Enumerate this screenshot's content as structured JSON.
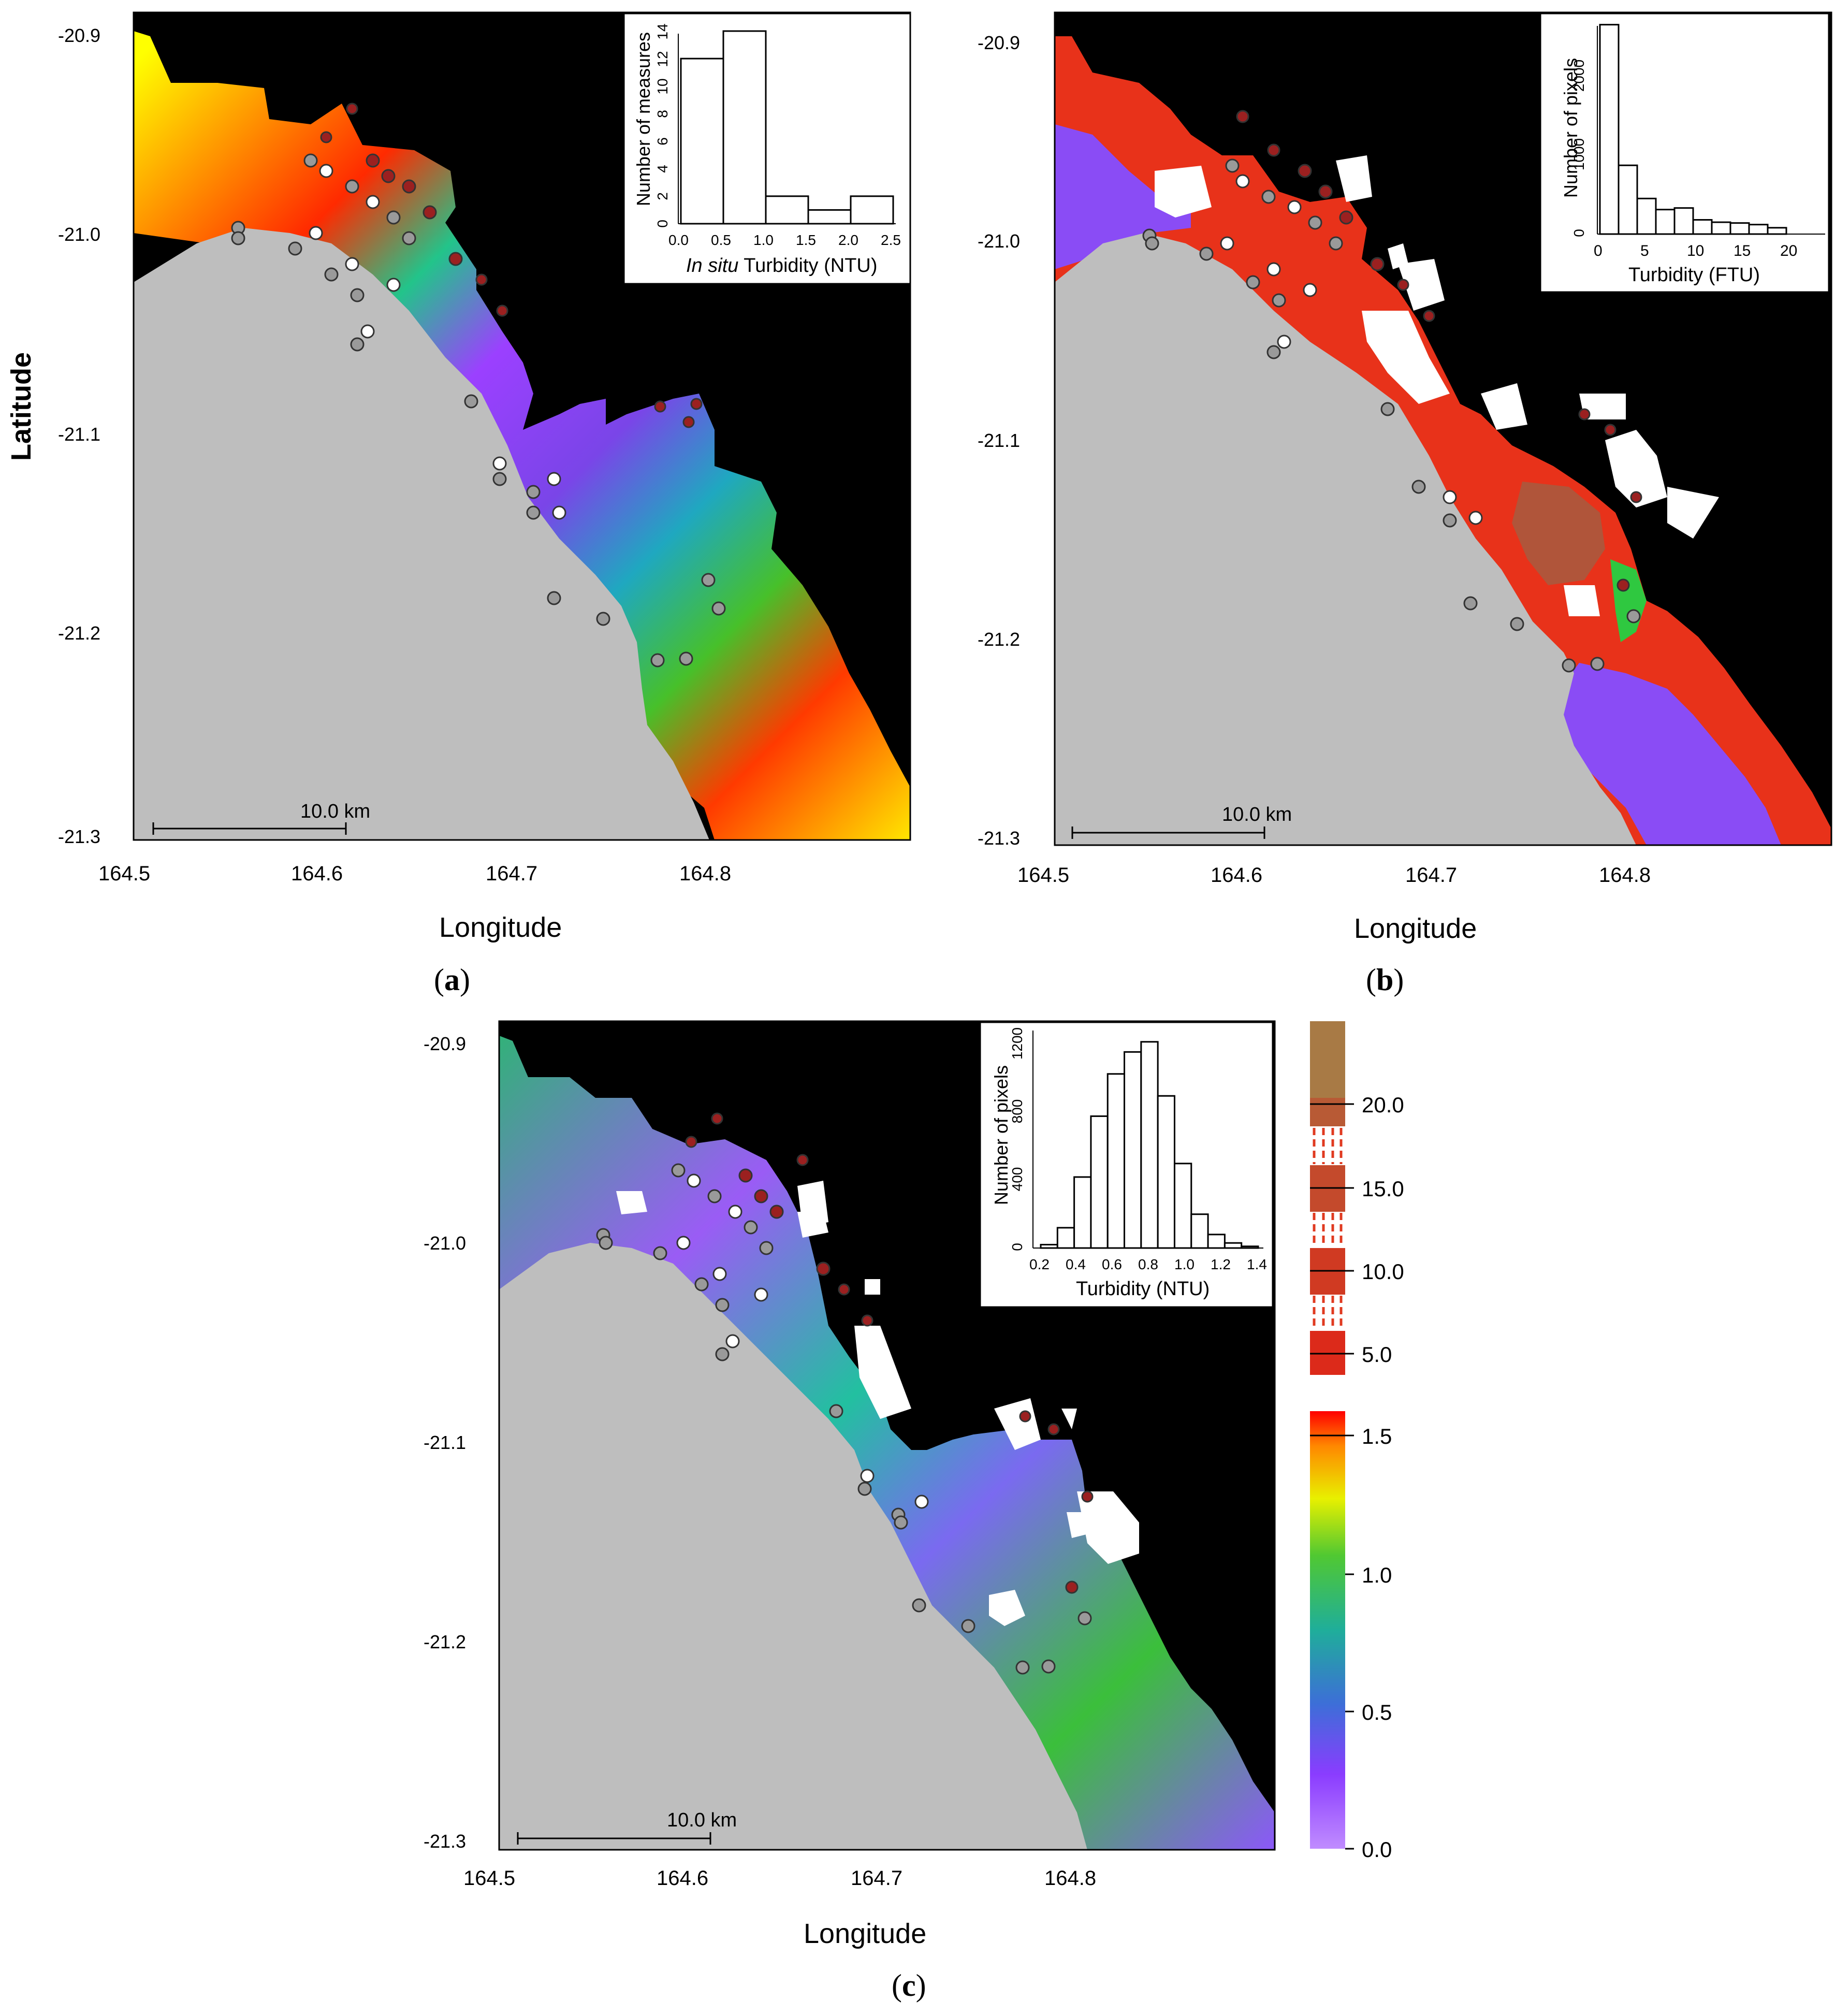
{
  "figure": {
    "panels": {
      "a": {
        "label_open": "(",
        "label_letter": "a",
        "label_close": ")",
        "xlabel": "Longitude",
        "ylabel": "Latitude",
        "scalebar": "10.0 km",
        "inset": {
          "xlabel_italic": "In situ",
          "xlabel_rest": " Turbidity (NTU)",
          "ylabel": "Number of measures",
          "xticks": [
            "0.0",
            "0.5",
            "1.0",
            "1.5",
            "2.0",
            "2.5"
          ],
          "yticks": [
            "0",
            "2",
            "4",
            "6",
            "8",
            "10",
            "12",
            "14"
          ]
        }
      },
      "b": {
        "label_open": "(",
        "label_letter": "b",
        "label_close": ")",
        "xlabel": "Longitude",
        "scalebar": "10.0 km",
        "inset": {
          "xlabel": "Turbidity (FTU)",
          "ylabel": "Number of pixels",
          "xticks": [
            "0",
            "5",
            "10",
            "15",
            "20"
          ],
          "yticks": [
            "0",
            "1000",
            "2000"
          ]
        }
      },
      "c": {
        "label_open": "(",
        "label_letter": "c",
        "label_close": ")",
        "xlabel": "Longitude",
        "scalebar": "10.0 km",
        "inset": {
          "xlabel": "Turbidity (NTU)",
          "ylabel": "Number of pixels",
          "xticks": [
            "0.2",
            "0.4",
            "0.6",
            "0.8",
            "1.0",
            "1.2",
            "1.4"
          ],
          "yticks": [
            "0",
            "400",
            "800",
            "1200"
          ]
        }
      }
    },
    "lat_ticks": [
      "-20.9",
      "-21.0",
      "-21.1",
      "-21.2",
      "-21.3"
    ],
    "lon_ticks": [
      "164.5",
      "164.6",
      "164.7",
      "164.8"
    ],
    "colorbar": {
      "labels": [
        "20.0",
        "15.0",
        "10.0",
        "5.0",
        "1.5",
        "1.0",
        "0.5",
        "0.0"
      ]
    },
    "colors": {
      "land": "#bebebe",
      "ocean": "#000000",
      "cloud": "#ffffff",
      "station_grey": "#9a9a9a",
      "station_red": "#9b2020",
      "station_white": "#ffffff"
    }
  },
  "chart_data": [
    {
      "type": "bar",
      "panel": "a-inset",
      "categories": [
        "0.0-0.5",
        "0.5-1.0",
        "1.0-1.5",
        "1.5-2.0",
        "2.0-2.5"
      ],
      "values": [
        12,
        14,
        2,
        1,
        2
      ],
      "ylim": [
        0,
        14
      ]
    },
    {
      "type": "bar",
      "panel": "b-inset",
      "categories": [
        "0-2",
        "2-4",
        "4-6",
        "6-8",
        "8-10",
        "10-12",
        "12-14",
        "14-16",
        "16-18",
        "18-20"
      ],
      "values": [
        2650,
        870,
        450,
        310,
        330,
        180,
        150,
        140,
        120,
        80
      ],
      "ylim": [
        0,
        2700
      ]
    },
    {
      "type": "bar",
      "panel": "c-inset",
      "categories": [
        "0.1-0.2",
        "0.2-0.3",
        "0.3-0.4",
        "0.4-0.5",
        "0.5-0.6",
        "0.6-0.7",
        "0.7-0.8",
        "0.8-0.9",
        "0.9-1.0",
        "1.0-1.1",
        "1.1-1.2",
        "1.2-1.3",
        "1.3-1.4"
      ],
      "values": [
        20,
        120,
        420,
        780,
        1030,
        1160,
        1220,
        900,
        500,
        200,
        80,
        30,
        10
      ],
      "ylim": [
        0,
        1250
      ]
    }
  ]
}
